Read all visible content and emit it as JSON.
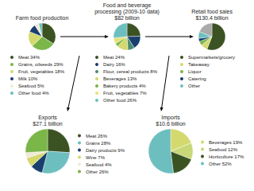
{
  "chart_data": [
    {
      "type": "pie",
      "title": "Farm food production",
      "categories": [
        "Meat 34%",
        "Grains, oilseeds 29%",
        "Fruit, vegetables 18%",
        "Milk 10%",
        "Seafood 5%",
        "Other food 4%"
      ],
      "values": [
        34,
        29,
        18,
        10,
        5,
        4
      ],
      "colors": [
        "#3b5323",
        "#7ab648",
        "#d4d96e",
        "#1a3f6f",
        "#f0ead6",
        "#6dbfbf"
      ],
      "legend": "bottom"
    },
    {
      "type": "pie",
      "title": "Food and beverage\nprocessing (2009-10 data)\n$82 billion",
      "categories": [
        "Meat 24%",
        "Dairy 16%",
        "Flour, cereal products 8%",
        "Beverages 13%",
        "Bakery products 4%",
        "Fruit, vegetables 7%",
        "Other food 26%"
      ],
      "values": [
        24,
        16,
        8,
        13,
        4,
        7,
        26
      ],
      "colors": [
        "#3b5323",
        "#1a3f6f",
        "#4a8c6f",
        "#d4d96e",
        "#7ab648",
        "#e8e07a",
        "#6dbfbf"
      ],
      "legend": "bottom"
    },
    {
      "type": "pie",
      "title": "Retail food sales\n$130.4 billion",
      "categories": [
        "Supermarkets/grocery",
        "Takeaway",
        "Liquor",
        "Catering",
        "Other",
        null
      ],
      "values": [
        56,
        8,
        5,
        4,
        8,
        19
      ],
      "colors": [
        "#3b5323",
        "#d4d96e",
        "#7ab648",
        "#1a3f6f",
        "#6dbfbf",
        "#aaaaaa"
      ],
      "legend": "bottom"
    },
    {
      "type": "pie",
      "title": "Exports\n$27.1 billion",
      "categories": [
        "Meat 26%",
        "Grains 28%",
        "Dairy products 9%",
        "Wine 7%",
        "Seafood 4%",
        "Other 26%"
      ],
      "values": [
        26,
        28,
        9,
        7,
        4,
        26
      ],
      "colors": [
        "#3b5323",
        "#6dbfbf",
        "#1a3f6f",
        "#d4d96e",
        "#f0ead6",
        "#7ab648"
      ],
      "legend": "right"
    },
    {
      "type": "pie",
      "title": "Imports\n$10.6 billion",
      "categories": [
        "Beverages 19%",
        "Seafood 12%",
        "Horticulture 17%",
        "Other 52%"
      ],
      "values": [
        19,
        12,
        17,
        52
      ],
      "colors": [
        "#d4d96e",
        "#c8d878",
        "#3b5323",
        "#6dbfbf"
      ],
      "legend": "right"
    }
  ]
}
